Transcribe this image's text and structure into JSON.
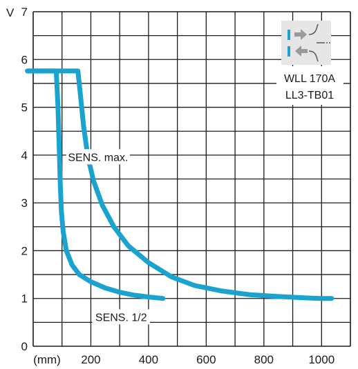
{
  "chart_data": {
    "type": "line",
    "x_unit": "(mm)",
    "y_unit": "V",
    "xlim": [
      0,
      1100
    ],
    "ylim": [
      0,
      7
    ],
    "x_tick_labels": [
      {
        "value": 200,
        "label": "200"
      },
      {
        "value": 400,
        "label": "400"
      },
      {
        "value": 600,
        "label": "600"
      },
      {
        "value": 800,
        "label": "800"
      },
      {
        "value": 1000,
        "label": "1000"
      }
    ],
    "y_tick_labels": [
      {
        "value": 0,
        "label": "0"
      },
      {
        "value": 1,
        "label": "1"
      },
      {
        "value": 2,
        "label": "2"
      },
      {
        "value": 3,
        "label": "3"
      },
      {
        "value": 4,
        "label": "4"
      },
      {
        "value": 5,
        "label": "5"
      },
      {
        "value": 6,
        "label": "6"
      },
      {
        "value": 7,
        "label": "7"
      }
    ],
    "grid": true,
    "series": [
      {
        "name": "SENS. max.",
        "color": "#1aa3cf",
        "points": [
          [
            -20,
            5.76
          ],
          [
            0,
            5.76
          ],
          [
            50,
            5.76
          ],
          [
            100,
            5.76
          ],
          [
            155,
            5.76
          ],
          [
            165,
            5.2
          ],
          [
            175,
            4.6
          ],
          [
            190,
            3.95
          ],
          [
            210,
            3.45
          ],
          [
            240,
            2.95
          ],
          [
            280,
            2.5
          ],
          [
            330,
            2.1
          ],
          [
            400,
            1.75
          ],
          [
            480,
            1.45
          ],
          [
            560,
            1.27
          ],
          [
            650,
            1.16
          ],
          [
            750,
            1.08
          ],
          [
            850,
            1.04
          ],
          [
            950,
            1.01
          ],
          [
            1000,
            1.0
          ],
          [
            1035,
            1.0
          ]
        ]
      },
      {
        "name": "SENS. 1/2",
        "color": "#1aa3cf",
        "points": [
          [
            -20,
            5.76
          ],
          [
            0,
            5.76
          ],
          [
            30,
            5.76
          ],
          [
            60,
            5.76
          ],
          [
            80,
            5.76
          ],
          [
            86,
            5.0
          ],
          [
            90,
            4.2
          ],
          [
            94,
            3.4
          ],
          [
            98,
            2.8
          ],
          [
            104,
            2.4
          ],
          [
            115,
            2.0
          ],
          [
            135,
            1.7
          ],
          [
            160,
            1.5
          ],
          [
            200,
            1.35
          ],
          [
            250,
            1.22
          ],
          [
            300,
            1.13
          ],
          [
            350,
            1.07
          ],
          [
            400,
            1.03
          ],
          [
            450,
            1.0
          ]
        ]
      }
    ],
    "annotations": [
      {
        "text": "SENS. max.",
        "x": 225,
        "y": 3.95
      },
      {
        "text": "SENS. 1/2",
        "x": 305,
        "y": 0.6
      }
    ],
    "legend_box": {
      "lines": [
        "WLL 170A",
        "LL3-TB01"
      ],
      "icon": "fiber-optic-emitter-receiver-icon",
      "accent": "#1aa3cf",
      "arrow_color": "#9a9a9a",
      "bg": "#e6e6e6"
    }
  }
}
